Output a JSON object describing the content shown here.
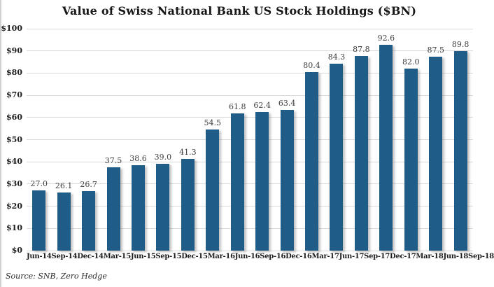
{
  "title": "Value of Swiss National Bank US Stock Holdings ($BN)",
  "source": "Source: SNB, Zero Hedge",
  "chart_data": {
    "type": "bar",
    "title": "Value of Swiss National Bank US Stock Holdings ($BN)",
    "categories": [
      "Jun-14",
      "Sep-14",
      "Dec-14",
      "Mar-15",
      "Jun-15",
      "Sep-15",
      "Dec-15",
      "Mar-16",
      "Jun-16",
      "Sep-16",
      "Dec-16",
      "Mar-17",
      "Jun-17",
      "Sep-17",
      "Dec-17",
      "Mar-18",
      "Jun-18",
      "Sep-18"
    ],
    "values": [
      27.0,
      26.1,
      26.7,
      37.5,
      38.6,
      39.0,
      41.3,
      54.5,
      61.8,
      62.4,
      63.4,
      80.4,
      84.3,
      87.8,
      92.6,
      82.0,
      87.5,
      89.8
    ],
    "value_labels": [
      "27.0",
      "26.1",
      "26.7",
      "37.5",
      "38.6",
      "39.0",
      "41.3",
      "54.5",
      "61.8",
      "62.4",
      "63.4",
      "80.4",
      "84.3",
      "87.8",
      "92.6",
      "82.0",
      "87.5",
      "89.8"
    ],
    "xlabel": "",
    "ylabel": "",
    "ylim": [
      0,
      100
    ],
    "ytick_values": [
      0,
      10,
      20,
      30,
      40,
      50,
      60,
      70,
      80,
      90,
      100
    ],
    "ytick_labels": [
      "$0",
      "$10",
      "$20",
      "$30",
      "$40",
      "$50",
      "$60",
      "$70",
      "$80",
      "$90",
      "$100"
    ],
    "grid": true,
    "legend": "none",
    "source_note": "Source: SNB, Zero Hedge",
    "bar_color": "#1F5C87",
    "gridline_color": "#d9d9d9"
  }
}
